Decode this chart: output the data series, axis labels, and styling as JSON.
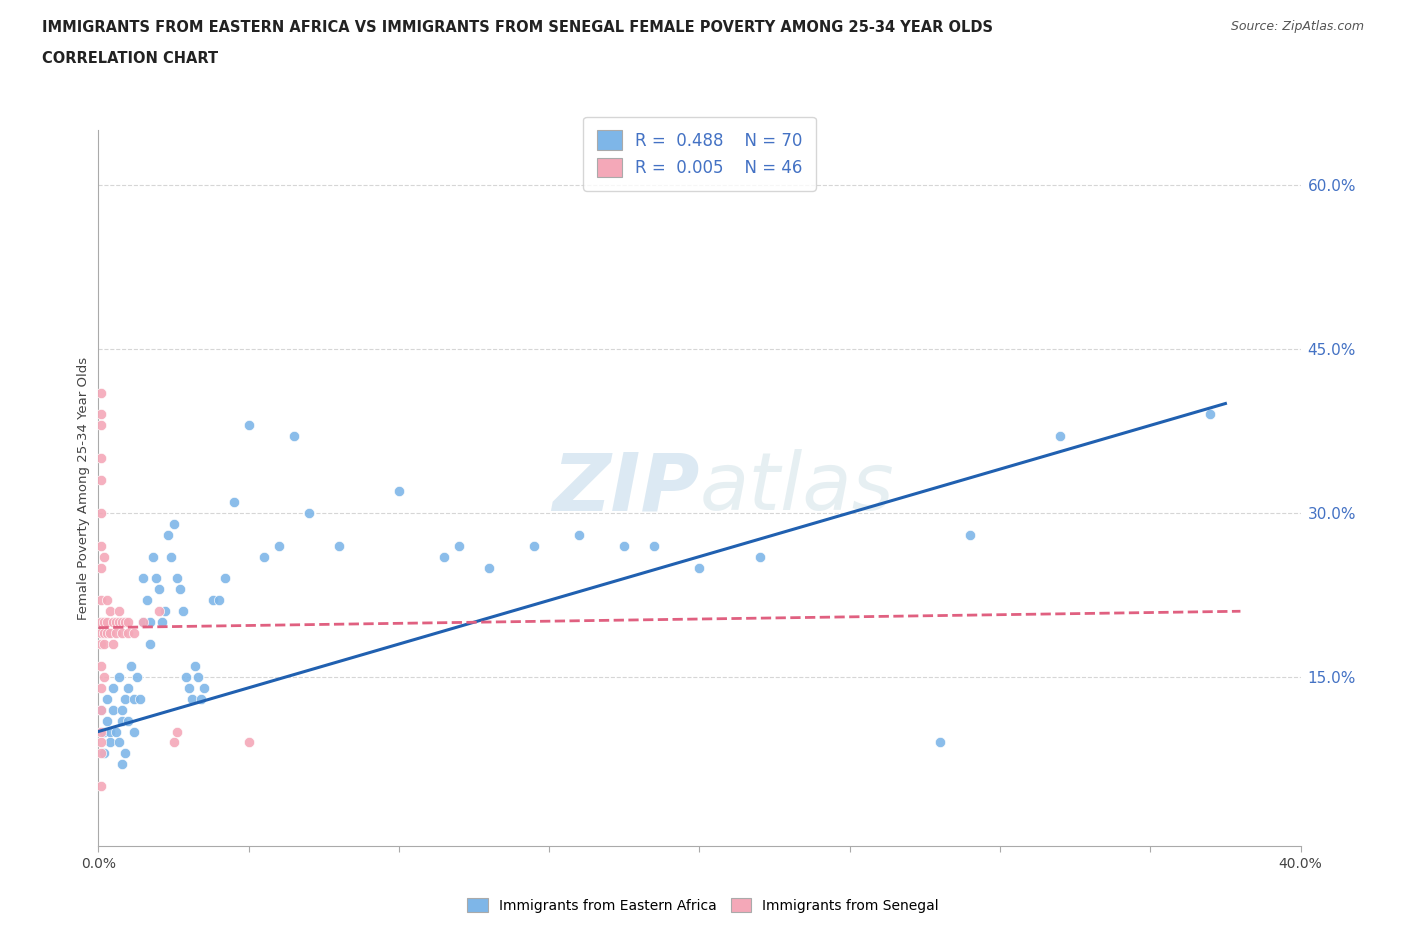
{
  "title_line1": "IMMIGRANTS FROM EASTERN AFRICA VS IMMIGRANTS FROM SENEGAL FEMALE POVERTY AMONG 25-34 YEAR OLDS",
  "title_line2": "CORRELATION CHART",
  "source_text": "Source: ZipAtlas.com",
  "xlabel": "Immigrants from Eastern Africa",
  "ylabel": "Female Poverty Among 25-34 Year Olds",
  "xlim": [
    0.0,
    0.4
  ],
  "ylim": [
    -0.005,
    0.65
  ],
  "xticks": [
    0.0,
    0.05,
    0.1,
    0.15,
    0.2,
    0.25,
    0.3,
    0.35,
    0.4
  ],
  "xtick_labels": [
    "0.0%",
    "",
    "",
    "",
    "",
    "",
    "",
    "",
    "40.0%"
  ],
  "ytick_positions": [
    0.15,
    0.3,
    0.45,
    0.6
  ],
  "ytick_labels": [
    "15.0%",
    "30.0%",
    "45.0%",
    "60.0%"
  ],
  "R_blue": 0.488,
  "N_blue": 70,
  "R_pink": 0.005,
  "N_pink": 46,
  "blue_color": "#7EB6E8",
  "pink_color": "#F4A8B8",
  "trend_blue_color": "#2060B0",
  "trend_pink_color": "#E06080",
  "watermark_color": "#B8D0EE",
  "grid_color": "#CCCCCC",
  "blue_scatter": [
    [
      0.001,
      0.12
    ],
    [
      0.002,
      0.1
    ],
    [
      0.002,
      0.08
    ],
    [
      0.003,
      0.11
    ],
    [
      0.003,
      0.13
    ],
    [
      0.004,
      0.09
    ],
    [
      0.004,
      0.1
    ],
    [
      0.005,
      0.12
    ],
    [
      0.005,
      0.14
    ],
    [
      0.006,
      0.1
    ],
    [
      0.007,
      0.09
    ],
    [
      0.007,
      0.15
    ],
    [
      0.008,
      0.12
    ],
    [
      0.008,
      0.11
    ],
    [
      0.009,
      0.13
    ],
    [
      0.01,
      0.14
    ],
    [
      0.01,
      0.11
    ],
    [
      0.011,
      0.16
    ],
    [
      0.012,
      0.1
    ],
    [
      0.012,
      0.13
    ],
    [
      0.013,
      0.15
    ],
    [
      0.014,
      0.13
    ],
    [
      0.015,
      0.2
    ],
    [
      0.015,
      0.24
    ],
    [
      0.016,
      0.22
    ],
    [
      0.017,
      0.18
    ],
    [
      0.017,
      0.2
    ],
    [
      0.018,
      0.26
    ],
    [
      0.019,
      0.24
    ],
    [
      0.02,
      0.23
    ],
    [
      0.021,
      0.2
    ],
    [
      0.022,
      0.21
    ],
    [
      0.023,
      0.28
    ],
    [
      0.024,
      0.26
    ],
    [
      0.025,
      0.29
    ],
    [
      0.026,
      0.24
    ],
    [
      0.027,
      0.23
    ],
    [
      0.028,
      0.21
    ],
    [
      0.029,
      0.15
    ],
    [
      0.03,
      0.14
    ],
    [
      0.031,
      0.13
    ],
    [
      0.032,
      0.16
    ],
    [
      0.033,
      0.15
    ],
    [
      0.034,
      0.13
    ],
    [
      0.035,
      0.14
    ],
    [
      0.038,
      0.22
    ],
    [
      0.04,
      0.22
    ],
    [
      0.042,
      0.24
    ],
    [
      0.045,
      0.31
    ],
    [
      0.05,
      0.38
    ],
    [
      0.055,
      0.26
    ],
    [
      0.06,
      0.27
    ],
    [
      0.065,
      0.37
    ],
    [
      0.07,
      0.3
    ],
    [
      0.08,
      0.27
    ],
    [
      0.1,
      0.32
    ],
    [
      0.115,
      0.26
    ],
    [
      0.12,
      0.27
    ],
    [
      0.13,
      0.25
    ],
    [
      0.145,
      0.27
    ],
    [
      0.16,
      0.28
    ],
    [
      0.175,
      0.27
    ],
    [
      0.185,
      0.27
    ],
    [
      0.2,
      0.25
    ],
    [
      0.22,
      0.26
    ],
    [
      0.28,
      0.09
    ],
    [
      0.29,
      0.28
    ],
    [
      0.32,
      0.37
    ],
    [
      0.37,
      0.39
    ],
    [
      0.008,
      0.07
    ],
    [
      0.009,
      0.08
    ]
  ],
  "pink_scatter": [
    [
      0.001,
      0.41
    ],
    [
      0.001,
      0.39
    ],
    [
      0.001,
      0.38
    ],
    [
      0.001,
      0.35
    ],
    [
      0.001,
      0.33
    ],
    [
      0.001,
      0.3
    ],
    [
      0.001,
      0.27
    ],
    [
      0.001,
      0.25
    ],
    [
      0.001,
      0.22
    ],
    [
      0.001,
      0.2
    ],
    [
      0.001,
      0.19
    ],
    [
      0.001,
      0.18
    ],
    [
      0.001,
      0.16
    ],
    [
      0.001,
      0.14
    ],
    [
      0.001,
      0.12
    ],
    [
      0.001,
      0.1
    ],
    [
      0.001,
      0.09
    ],
    [
      0.001,
      0.08
    ],
    [
      0.002,
      0.26
    ],
    [
      0.002,
      0.2
    ],
    [
      0.002,
      0.19
    ],
    [
      0.002,
      0.18
    ],
    [
      0.002,
      0.15
    ],
    [
      0.003,
      0.22
    ],
    [
      0.003,
      0.2
    ],
    [
      0.003,
      0.19
    ],
    [
      0.004,
      0.21
    ],
    [
      0.004,
      0.19
    ],
    [
      0.005,
      0.2
    ],
    [
      0.005,
      0.18
    ],
    [
      0.006,
      0.2
    ],
    [
      0.006,
      0.19
    ],
    [
      0.007,
      0.2
    ],
    [
      0.007,
      0.21
    ],
    [
      0.008,
      0.19
    ],
    [
      0.008,
      0.2
    ],
    [
      0.009,
      0.2
    ],
    [
      0.01,
      0.19
    ],
    [
      0.01,
      0.2
    ],
    [
      0.012,
      0.19
    ],
    [
      0.015,
      0.2
    ],
    [
      0.02,
      0.21
    ],
    [
      0.025,
      0.09
    ],
    [
      0.026,
      0.1
    ],
    [
      0.05,
      0.09
    ],
    [
      0.001,
      0.05
    ]
  ],
  "blue_trend_x": [
    0.0,
    0.375
  ],
  "blue_trend_y": [
    0.1,
    0.4
  ],
  "pink_trend_x": [
    0.0,
    0.38
  ],
  "pink_trend_y": [
    0.195,
    0.21
  ]
}
